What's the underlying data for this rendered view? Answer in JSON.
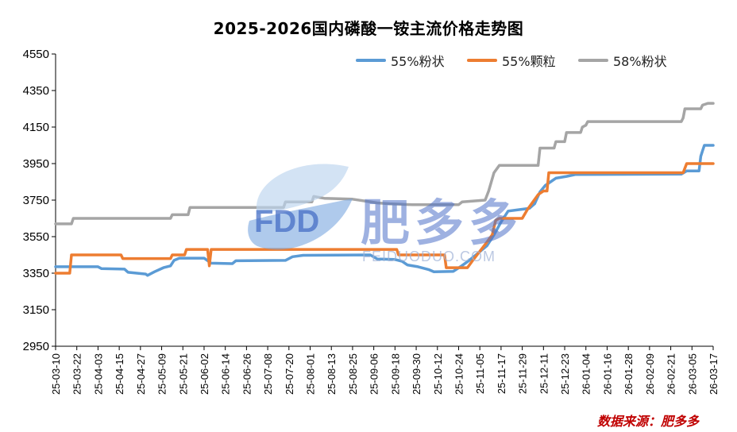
{
  "chart_data": {
    "type": "line",
    "title": "2025-2026国内磷酸一铵主流价格走势图",
    "source": "数据来源：肥多多",
    "watermark": {
      "logo": "FDD",
      "text": "肥多多",
      "sub": "FEIDUODUO.COM"
    },
    "ylim": [
      2950,
      4550
    ],
    "yticks": [
      2950,
      3150,
      3350,
      3550,
      3750,
      3950,
      4150,
      4350,
      4550
    ],
    "x_start": "2025-03-10",
    "x_end": "2026-03-17",
    "xticks": [
      "25-03-10",
      "25-03-22",
      "25-04-03",
      "25-04-15",
      "25-04-27",
      "25-05-09",
      "25-05-21",
      "25-06-02",
      "25-06-14",
      "25-06-26",
      "25-07-08",
      "25-07-20",
      "25-08-01",
      "25-08-13",
      "25-08-25",
      "25-09-06",
      "25-09-18",
      "25-09-30",
      "25-10-12",
      "25-10-24",
      "25-11-05",
      "25-11-17",
      "25-11-29",
      "25-12-11",
      "25-12-23",
      "26-01-04",
      "26-01-16",
      "26-01-28",
      "26-02-09",
      "26-02-21",
      "26-03-05",
      "26-03-17"
    ],
    "legend_position": "top-right",
    "grid": false,
    "series": [
      {
        "name": "55%粉状",
        "color": "#5b9bd5",
        "points": [
          [
            "2025-03-10",
            3385
          ],
          [
            "2025-04-03",
            3385
          ],
          [
            "2025-04-05",
            3375
          ],
          [
            "2025-04-18",
            3372
          ],
          [
            "2025-04-20",
            3355
          ],
          [
            "2025-04-30",
            3345
          ],
          [
            "2025-05-01",
            3338
          ],
          [
            "2025-05-05",
            3358
          ],
          [
            "2025-05-10",
            3380
          ],
          [
            "2025-05-14",
            3390
          ],
          [
            "2025-05-16",
            3420
          ],
          [
            "2025-05-19",
            3432
          ],
          [
            "2025-06-02",
            3432
          ],
          [
            "2025-06-06",
            3405
          ],
          [
            "2025-06-18",
            3402
          ],
          [
            "2025-06-20",
            3418
          ],
          [
            "2025-07-18",
            3420
          ],
          [
            "2025-07-22",
            3440
          ],
          [
            "2025-07-28",
            3448
          ],
          [
            "2025-09-04",
            3450
          ],
          [
            "2025-09-08",
            3428
          ],
          [
            "2025-09-18",
            3425
          ],
          [
            "2025-09-22",
            3415
          ],
          [
            "2025-09-25",
            3395
          ],
          [
            "2025-10-01",
            3385
          ],
          [
            "2025-10-07",
            3370
          ],
          [
            "2025-10-10",
            3358
          ],
          [
            "2025-10-21",
            3360
          ],
          [
            "2025-10-25",
            3385
          ],
          [
            "2025-10-30",
            3420
          ],
          [
            "2025-11-04",
            3460
          ],
          [
            "2025-11-09",
            3500
          ],
          [
            "2025-11-13",
            3560
          ],
          [
            "2025-11-17",
            3630
          ],
          [
            "2025-11-21",
            3690
          ],
          [
            "2025-11-29",
            3700
          ],
          [
            "2025-12-03",
            3705
          ],
          [
            "2025-12-06",
            3730
          ],
          [
            "2025-12-09",
            3795
          ],
          [
            "2025-12-12",
            3830
          ],
          [
            "2025-12-15",
            3850
          ],
          [
            "2025-12-18",
            3870
          ],
          [
            "2025-12-24",
            3880
          ],
          [
            "2025-12-29",
            3890
          ],
          [
            "2026-02-27",
            3892
          ],
          [
            "2026-03-02",
            3910
          ],
          [
            "2026-03-09",
            3910
          ],
          [
            "2026-03-10",
            3990
          ],
          [
            "2026-03-11",
            4020
          ],
          [
            "2026-03-12",
            4050
          ],
          [
            "2026-03-17",
            4050
          ]
        ]
      },
      {
        "name": "55%颗粒",
        "color": "#ed7d31",
        "points": [
          [
            "2025-03-10",
            3350
          ],
          [
            "2025-03-18",
            3350
          ],
          [
            "2025-03-19",
            3450
          ],
          [
            "2025-04-16",
            3450
          ],
          [
            "2025-04-17",
            3430
          ],
          [
            "2025-05-14",
            3430
          ],
          [
            "2025-05-15",
            3450
          ],
          [
            "2025-05-22",
            3450
          ],
          [
            "2025-05-23",
            3480
          ],
          [
            "2025-06-04",
            3480
          ],
          [
            "2025-06-05",
            3390
          ],
          [
            "2025-06-06",
            3480
          ],
          [
            "2025-09-19",
            3480
          ],
          [
            "2025-09-20",
            3450
          ],
          [
            "2025-10-16",
            3450
          ],
          [
            "2025-10-17",
            3380
          ],
          [
            "2025-10-29",
            3380
          ],
          [
            "2025-11-01",
            3420
          ],
          [
            "2025-11-05",
            3470
          ],
          [
            "2025-11-09",
            3520
          ],
          [
            "2025-11-12",
            3560
          ],
          [
            "2025-11-14",
            3640
          ],
          [
            "2025-11-16",
            3650
          ],
          [
            "2025-11-29",
            3650
          ],
          [
            "2025-12-02",
            3700
          ],
          [
            "2025-12-08",
            3780
          ],
          [
            "2025-12-11",
            3800
          ],
          [
            "2025-12-13",
            3800
          ],
          [
            "2025-12-14",
            3900
          ],
          [
            "2026-02-28",
            3900
          ],
          [
            "2026-03-02",
            3950
          ],
          [
            "2026-03-17",
            3950
          ]
        ]
      },
      {
        "name": "58%粉状",
        "color": "#a5a5a5",
        "points": [
          [
            "2025-03-10",
            3620
          ],
          [
            "2025-03-19",
            3620
          ],
          [
            "2025-03-20",
            3650
          ],
          [
            "2025-05-14",
            3650
          ],
          [
            "2025-05-15",
            3670
          ],
          [
            "2025-05-24",
            3670
          ],
          [
            "2025-05-25",
            3710
          ],
          [
            "2025-07-17",
            3710
          ],
          [
            "2025-07-18",
            3740
          ],
          [
            "2025-08-02",
            3740
          ],
          [
            "2025-08-03",
            3770
          ],
          [
            "2025-08-09",
            3760
          ],
          [
            "2025-08-25",
            3755
          ],
          [
            "2025-09-08",
            3735
          ],
          [
            "2025-09-15",
            3730
          ],
          [
            "2025-09-28",
            3725
          ],
          [
            "2025-10-24",
            3725
          ],
          [
            "2025-10-26",
            3740
          ],
          [
            "2025-11-08",
            3750
          ],
          [
            "2025-11-10",
            3800
          ],
          [
            "2025-11-13",
            3900
          ],
          [
            "2025-11-16",
            3940
          ],
          [
            "2025-12-08",
            3940
          ],
          [
            "2025-12-09",
            4035
          ],
          [
            "2025-12-17",
            4035
          ],
          [
            "2025-12-18",
            4070
          ],
          [
            "2025-12-23",
            4070
          ],
          [
            "2025-12-24",
            4120
          ],
          [
            "2026-01-01",
            4120
          ],
          [
            "2026-01-02",
            4150
          ],
          [
            "2026-01-04",
            4160
          ],
          [
            "2026-01-05",
            4180
          ],
          [
            "2026-02-27",
            4180
          ],
          [
            "2026-02-28",
            4200
          ],
          [
            "2026-03-01",
            4250
          ],
          [
            "2026-03-10",
            4250
          ],
          [
            "2026-03-11",
            4270
          ],
          [
            "2026-03-14",
            4280
          ],
          [
            "2026-03-17",
            4280
          ]
        ]
      }
    ]
  }
}
